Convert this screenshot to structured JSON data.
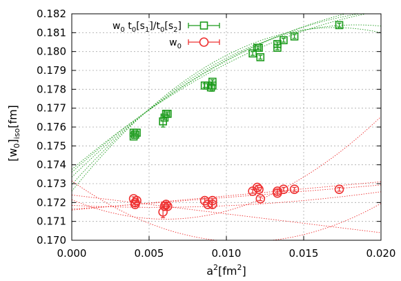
{
  "chart_data": {
    "type": "scatter",
    "x_axis": {
      "label_main": "a",
      "label_sup": "2",
      "label_open": "[fm",
      "label_sup2": "2",
      "label_close": "]",
      "lim": [
        0.0,
        0.02
      ],
      "ticks": [
        0.0,
        0.005,
        0.01,
        0.015,
        0.02
      ],
      "tick_labels": [
        "0.000",
        "0.005",
        "0.010",
        "0.015",
        "0.020"
      ]
    },
    "y_axis": {
      "label_open": "[w",
      "label_sub0": "0",
      "label_mid": "]",
      "label_sub_iso": "iso",
      "label_tail": "[fm]",
      "lim": [
        0.17,
        0.182
      ],
      "ticks": [
        0.17,
        0.171,
        0.172,
        0.173,
        0.174,
        0.175,
        0.176,
        0.177,
        0.178,
        0.179,
        0.18,
        0.181,
        0.182
      ],
      "tick_labels": [
        "0.170",
        "0.171",
        "0.172",
        "0.173",
        "0.174",
        "0.175",
        "0.176",
        "0.177",
        "0.178",
        "0.179",
        "0.180",
        "0.181",
        "0.182"
      ]
    },
    "grid": true,
    "legend_position": "top-center",
    "series": [
      {
        "legend_parts": [
          "w",
          "0",
          " t",
          "0",
          "[s",
          "1",
          "]/t",
          "0",
          "[s",
          "2",
          "]"
        ],
        "marker": "square",
        "color": "#1a9a1a",
        "points": [
          {
            "x": 0.004,
            "y": 0.1757,
            "err": 0.0001
          },
          {
            "x": 0.0041,
            "y": 0.1756,
            "err": 0.0001
          },
          {
            "x": 0.0042,
            "y": 0.1757,
            "err": 0.0001
          },
          {
            "x": 0.004,
            "y": 0.1755,
            "err": 0.0001
          },
          {
            "x": 0.0059,
            "y": 0.1763,
            "err": 0.0003
          },
          {
            "x": 0.006,
            "y": 0.1765,
            "err": 0.0001
          },
          {
            "x": 0.0061,
            "y": 0.1767,
            "err": 0.0001
          },
          {
            "x": 0.0062,
            "y": 0.1767,
            "err": 0.0001
          },
          {
            "x": 0.0086,
            "y": 0.1782,
            "err": 0.0001
          },
          {
            "x": 0.0088,
            "y": 0.1782,
            "err": 0.0001
          },
          {
            "x": 0.009,
            "y": 0.1781,
            "err": 0.0002
          },
          {
            "x": 0.0091,
            "y": 0.1784,
            "err": 0.0001
          },
          {
            "x": 0.0091,
            "y": 0.1782,
            "err": 0.0003
          },
          {
            "x": 0.0117,
            "y": 0.1799,
            "err": 0.0001
          },
          {
            "x": 0.012,
            "y": 0.1802,
            "err": 0.0001
          },
          {
            "x": 0.0121,
            "y": 0.1802,
            "err": 0.0001
          },
          {
            "x": 0.0122,
            "y": 0.1797,
            "err": 0.0001
          },
          {
            "x": 0.0133,
            "y": 0.1802,
            "err": 0.0001
          },
          {
            "x": 0.0133,
            "y": 0.1804,
            "err": 0.0001
          },
          {
            "x": 0.0137,
            "y": 0.1806,
            "err": 0.0001
          },
          {
            "x": 0.0144,
            "y": 0.1808,
            "err": 0.0001
          },
          {
            "x": 0.0173,
            "y": 0.1814,
            "err": 0.0001
          }
        ],
        "fits": [
          {
            "y0": 0.17375,
            "slope": 0.7,
            "curv": -14
          },
          {
            "y0": 0.1736,
            "slope": 0.74,
            "curv": -15
          },
          {
            "y0": 0.17335,
            "slope": 0.8,
            "curv": -18
          },
          {
            "y0": 0.17295,
            "slope": 0.92,
            "curv": -25
          },
          {
            "y0": 0.1726,
            "slope": 1.02,
            "curv": -30
          }
        ]
      },
      {
        "legend_parts": [
          "w",
          "0"
        ],
        "marker": "circle",
        "color": "#ee3030",
        "points": [
          {
            "x": 0.004,
            "y": 0.1722,
            "err": 0.0001
          },
          {
            "x": 0.0041,
            "y": 0.172,
            "err": 0.0001
          },
          {
            "x": 0.0042,
            "y": 0.1721,
            "err": 0.0001
          },
          {
            "x": 0.0041,
            "y": 0.1719,
            "err": 0.0001
          },
          {
            "x": 0.0059,
            "y": 0.1715,
            "err": 0.0003
          },
          {
            "x": 0.006,
            "y": 0.1718,
            "err": 0.0001
          },
          {
            "x": 0.0061,
            "y": 0.1719,
            "err": 0.0001
          },
          {
            "x": 0.0062,
            "y": 0.1718,
            "err": 0.0001
          },
          {
            "x": 0.0086,
            "y": 0.1721,
            "err": 0.0001
          },
          {
            "x": 0.0088,
            "y": 0.1719,
            "err": 0.0001
          },
          {
            "x": 0.0091,
            "y": 0.1719,
            "err": 0.0002
          },
          {
            "x": 0.0091,
            "y": 0.1721,
            "err": 0.0001
          },
          {
            "x": 0.0117,
            "y": 0.1726,
            "err": 0.0001
          },
          {
            "x": 0.012,
            "y": 0.1728,
            "err": 0.0001
          },
          {
            "x": 0.0121,
            "y": 0.1727,
            "err": 0.0001
          },
          {
            "x": 0.0122,
            "y": 0.1722,
            "err": 0.0001
          },
          {
            "x": 0.0133,
            "y": 0.1725,
            "err": 0.0001
          },
          {
            "x": 0.0133,
            "y": 0.1726,
            "err": 0.0001
          },
          {
            "x": 0.0137,
            "y": 0.1727,
            "err": 0.0001
          },
          {
            "x": 0.0144,
            "y": 0.1727,
            "err": 0.0001
          },
          {
            "x": 0.0173,
            "y": 0.1727,
            "err": 0.0001
          }
        ],
        "fits": [
          {
            "y0": 0.1716,
            "slope": 0.075,
            "curv": 0
          },
          {
            "y0": 0.17165,
            "slope": 0.06,
            "curv": 0.2
          },
          {
            "y0": 0.17185,
            "slope": -0.04,
            "curv": 3.8
          },
          {
            "y0": 0.17215,
            "slope": -0.34,
            "curv": 28
          },
          {
            "y0": 0.1724,
            "slope": -0.1,
            "curv": 0
          },
          {
            "y0": 0.17315,
            "slope": -0.58,
            "curv": 26
          }
        ]
      }
    ]
  }
}
